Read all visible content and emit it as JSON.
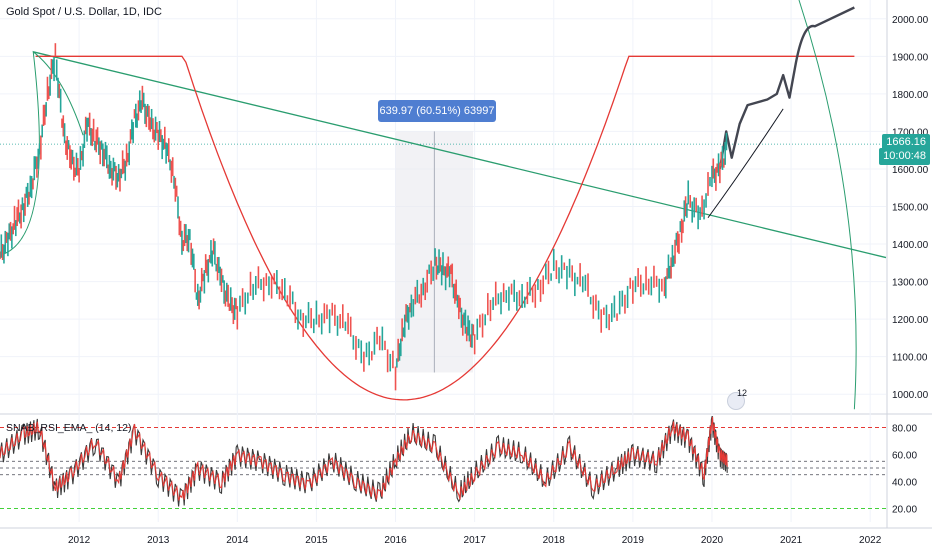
{
  "chart": {
    "title": "Gold Spot / U.S. Dollar, 1D, IDC",
    "price_label": "1666.16",
    "time_label": "10:00:48",
    "measure_label": "639.97 (60.51%) 63997",
    "event_badge": "12"
  },
  "price_axis": {
    "ticks": [
      "2000.00",
      "1900.00",
      "1800.00",
      "1700.00",
      "1600.00",
      "1500.00",
      "1400.00",
      "1300.00",
      "1200.00",
      "1100.00",
      "1000.00"
    ]
  },
  "time_axis": {
    "ticks": [
      "2012",
      "2013",
      "2014",
      "2015",
      "2016",
      "2017",
      "2018",
      "2019",
      "2020",
      "2021",
      "2022"
    ]
  },
  "indicator": {
    "label": "SNAB_RSI_EMA_ (14, 12)",
    "ticks": [
      "80.00",
      "60.00",
      "40.00",
      "20.00"
    ]
  },
  "colors": {
    "up": "#26a69a",
    "down": "#ef5350",
    "trendline": "#2a9d6f",
    "arc": "#e53935",
    "price_line": "#26a69a",
    "measure_box": "#4f7ed1"
  },
  "chart_data": {
    "type": "line",
    "title": "Gold Spot / U.S. Dollar, 1D, IDC",
    "xlabel": "",
    "ylabel": "",
    "ylim": [
      950,
      2050
    ],
    "x_range": [
      2011.0,
      2022.2
    ],
    "series": [
      {
        "x": [
          2011.0,
          2011.1,
          2011.2,
          2011.3,
          2011.4,
          2011.5,
          2011.6,
          2011.7,
          2011.8,
          2011.9,
          2012.0,
          2012.1,
          2012.2,
          2012.3,
          2012.4,
          2012.5,
          2012.6,
          2012.7,
          2012.8,
          2012.9,
          2013.0,
          2013.1,
          2013.2,
          2013.3,
          2013.4,
          2013.5,
          2013.6,
          2013.7,
          2013.8,
          2013.9,
          2014.0,
          2014.2,
          2014.4,
          2014.6,
          2014.8,
          2015.0,
          2015.2,
          2015.4,
          2015.6,
          2015.8,
          2016.0,
          2016.1,
          2016.2,
          2016.35,
          2016.5,
          2016.6,
          2016.7,
          2016.8,
          2016.9,
          2017.0,
          2017.2,
          2017.4,
          2017.6,
          2017.8,
          2018.0,
          2018.2,
          2018.4,
          2018.6,
          2018.8,
          2019.0,
          2019.2,
          2019.4,
          2019.5,
          2019.6,
          2019.7,
          2019.85,
          2020.0,
          2020.1,
          2020.2
        ],
        "values": [
          1370,
          1410,
          1460,
          1500,
          1560,
          1650,
          1800,
          1900,
          1700,
          1620,
          1590,
          1720,
          1680,
          1650,
          1600,
          1580,
          1620,
          1730,
          1780,
          1720,
          1690,
          1660,
          1580,
          1410,
          1420,
          1250,
          1330,
          1380,
          1300,
          1240,
          1220,
          1290,
          1300,
          1280,
          1200,
          1200,
          1210,
          1180,
          1090,
          1150,
          1060,
          1180,
          1240,
          1280,
          1350,
          1330,
          1320,
          1230,
          1170,
          1150,
          1240,
          1270,
          1260,
          1280,
          1340,
          1320,
          1290,
          1200,
          1220,
          1290,
          1300,
          1290,
          1360,
          1430,
          1520,
          1470,
          1580,
          1600,
          1666
        ]
      }
    ],
    "rsi": {
      "ylim": [
        10,
        90
      ],
      "x": [
        2011.0,
        2011.3,
        2011.5,
        2011.7,
        2011.9,
        2012.2,
        2012.5,
        2012.7,
        2013.0,
        2013.3,
        2013.5,
        2013.8,
        2014.0,
        2014.3,
        2014.6,
        2014.9,
        2015.2,
        2015.5,
        2015.8,
        2016.0,
        2016.2,
        2016.5,
        2016.8,
        2017.0,
        2017.3,
        2017.6,
        2017.9,
        2018.2,
        2018.5,
        2018.8,
        2019.0,
        2019.3,
        2019.5,
        2019.7,
        2019.9,
        2020.0,
        2020.1,
        2020.2
      ],
      "values": [
        60,
        75,
        80,
        35,
        45,
        70,
        40,
        78,
        45,
        28,
        50,
        40,
        60,
        55,
        45,
        38,
        55,
        40,
        30,
        55,
        75,
        65,
        30,
        45,
        65,
        60,
        40,
        65,
        35,
        50,
        60,
        55,
        80,
        72,
        45,
        85,
        60,
        55
      ]
    },
    "levels": {
      "upper": 80,
      "lower": 20,
      "mid": [
        55,
        50,
        45
      ]
    }
  }
}
